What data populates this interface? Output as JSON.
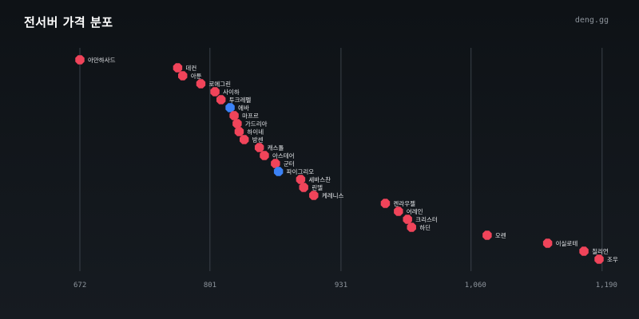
{
  "header": {
    "title": "전서버 가격 분포",
    "brand": "deng.gg"
  },
  "colors": {
    "default_point": "#f0445a",
    "highlight_point": "#3b82f6",
    "gridline": "#3a4149",
    "tick_text": "#8d949c"
  },
  "chart_data": {
    "type": "scatter",
    "title": "전서버 가격 분포",
    "xlabel": "",
    "ylabel": "",
    "grid": true,
    "xlim": [
      668,
      1197
    ],
    "xticks": [
      {
        "value": 672,
        "label": "672"
      },
      {
        "value": 801,
        "label": "801"
      },
      {
        "value": 931,
        "label": "931"
      },
      {
        "value": 1060,
        "label": "1,060"
      },
      {
        "value": 1190,
        "label": "1,190"
      }
    ],
    "points": [
      {
        "name": "아만하사드",
        "x": 672,
        "highlight": false
      },
      {
        "name": "데컨",
        "x": 769,
        "highlight": false
      },
      {
        "name": "아툰",
        "x": 774,
        "highlight": false
      },
      {
        "name": "로에그린",
        "x": 792,
        "highlight": false
      },
      {
        "name": "사이하",
        "x": 806,
        "highlight": false
      },
      {
        "name": "투크레펠",
        "x": 812,
        "highlight": false
      },
      {
        "name": "에바",
        "x": 821,
        "highlight": true
      },
      {
        "name": "마프르",
        "x": 825,
        "highlight": false
      },
      {
        "name": "가드리아",
        "x": 828,
        "highlight": false
      },
      {
        "name": "하이네",
        "x": 830,
        "highlight": false
      },
      {
        "name": "방센",
        "x": 835,
        "highlight": false
      },
      {
        "name": "캐스톨",
        "x": 850,
        "highlight": false
      },
      {
        "name": "아스테어",
        "x": 855,
        "highlight": false
      },
      {
        "name": "군터",
        "x": 866,
        "highlight": false
      },
      {
        "name": "파이그리오",
        "x": 869,
        "highlight": true
      },
      {
        "name": "세바스찬",
        "x": 891,
        "highlight": false
      },
      {
        "name": "린델",
        "x": 894,
        "highlight": false
      },
      {
        "name": "케레니스",
        "x": 904,
        "highlight": false
      },
      {
        "name": "켄라우젤",
        "x": 975,
        "highlight": false
      },
      {
        "name": "어레인",
        "x": 988,
        "highlight": false
      },
      {
        "name": "크리스터",
        "x": 997,
        "highlight": false
      },
      {
        "name": "하딘",
        "x": 1001,
        "highlight": false
      },
      {
        "name": "오렌",
        "x": 1076,
        "highlight": false
      },
      {
        "name": "이실로테",
        "x": 1136,
        "highlight": false
      },
      {
        "name": "칠리언",
        "x": 1172,
        "highlight": false
      },
      {
        "name": "조우",
        "x": 1187,
        "highlight": false
      }
    ]
  }
}
